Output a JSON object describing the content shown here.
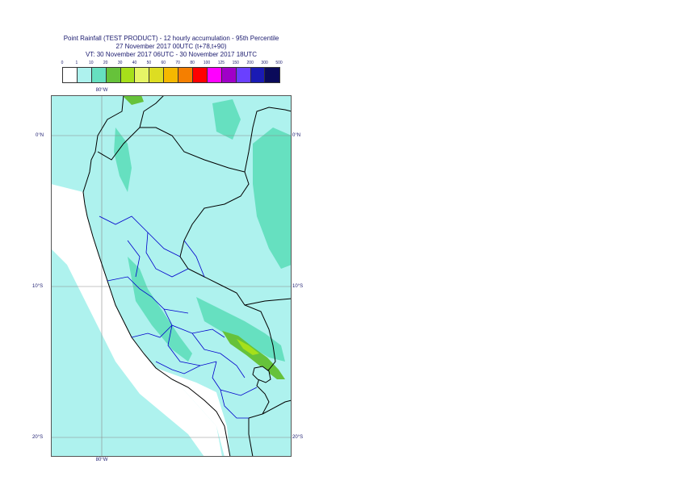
{
  "title": {
    "line1": "Point Rainfall (TEST PRODUCT) - 12 hourly accumulation - 95th Percentile",
    "line2": "27 November 2017 00UTC (t+78,t+90)",
    "line3": "VT: 30 November 2017 06UTC - 30 November 2017 18UTC"
  },
  "legend": {
    "thresholds": [
      "0",
      "1",
      "10",
      "20",
      "30",
      "40",
      "50",
      "60",
      "70",
      "80",
      "100",
      "125",
      "150",
      "200",
      "300",
      "500"
    ],
    "colors": [
      "#ffffff",
      "#aef2ee",
      "#66e0c0",
      "#66c23a",
      "#a6e01a",
      "#e6f566",
      "#dddd22",
      "#f5b800",
      "#f57f00",
      "#ff0000",
      "#ff00ff",
      "#a000c8",
      "#6a40ff",
      "#1a1ab4",
      "#0a0a5a"
    ]
  },
  "map": {
    "lon_labels": {
      "top": "80°W",
      "bottom": "80°W"
    },
    "lat_labels": {
      "n0": "0°N",
      "s10": "10°S",
      "s20": "20°S"
    },
    "colors": {
      "sea": "#aef2ee",
      "light": "#aef2ee",
      "medium": "#66e0c0",
      "green": "#66c23a",
      "yellowgreen": "#a6e01a",
      "coast": "#000000",
      "border": "#000000",
      "regions": "#0000cc",
      "grid": "#8a8a8a"
    }
  }
}
